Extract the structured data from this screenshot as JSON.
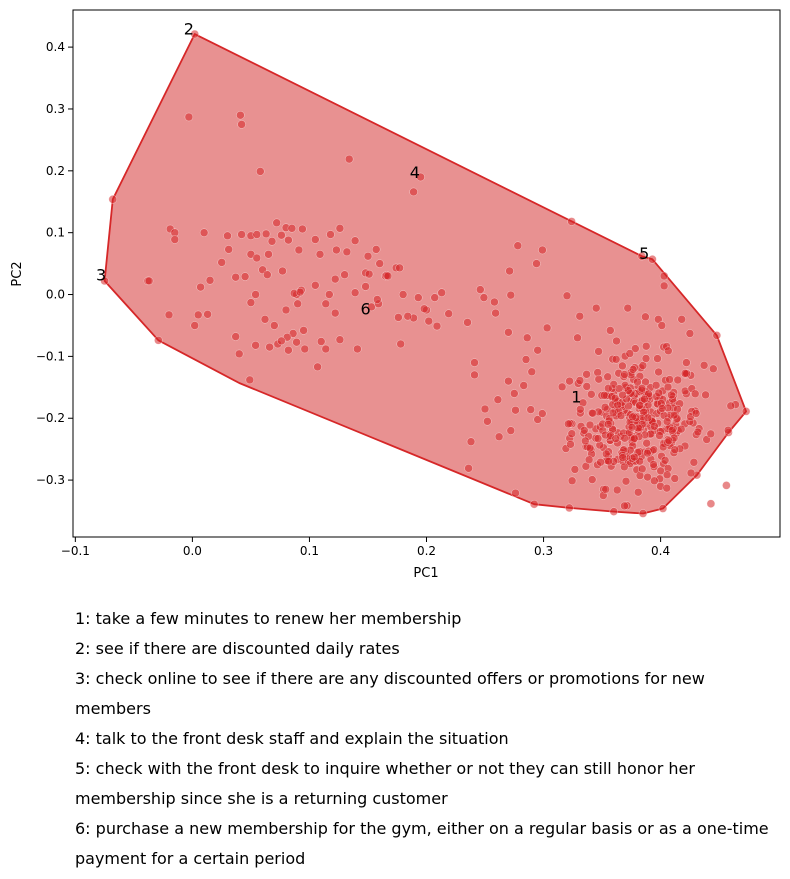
{
  "chart_data": {
    "type": "scatter",
    "title": "",
    "xlabel": "PC1",
    "ylabel": "PC2",
    "xlim": [
      -0.102,
      0.502
    ],
    "ylim": [
      -0.392,
      0.46
    ],
    "xticks": [
      -0.1,
      0.0,
      0.1,
      0.2,
      0.3,
      0.4
    ],
    "xtick_labels": [
      "−0.1",
      "0.0",
      "0.1",
      "0.2",
      "0.3",
      "0.4"
    ],
    "yticks": [
      -0.3,
      -0.2,
      -0.1,
      0.0,
      0.1,
      0.2,
      0.3,
      0.4
    ],
    "ytick_labels": [
      "−0.3",
      "−0.2",
      "−0.1",
      "0.0",
      "0.1",
      "0.2",
      "0.3",
      "0.4"
    ],
    "grid": false,
    "colors": {
      "hull_fill": "#e89191",
      "hull_edge": "#d62728",
      "point": "#d62728"
    },
    "hull": [
      [
        0.002,
        0.421
      ],
      [
        0.384,
        0.062
      ],
      [
        0.393,
        0.057
      ],
      [
        0.448,
        -0.066
      ],
      [
        0.473,
        -0.189
      ],
      [
        0.458,
        -0.223
      ],
      [
        0.431,
        -0.292
      ],
      [
        0.402,
        -0.346
      ],
      [
        0.385,
        -0.354
      ],
      [
        0.36,
        -0.351
      ],
      [
        0.322,
        -0.345
      ],
      [
        0.292,
        -0.339
      ],
      [
        0.04,
        -0.143
      ],
      [
        -0.029,
        -0.074
      ],
      [
        -0.075,
        0.022
      ],
      [
        -0.068,
        0.154
      ]
    ],
    "annotations": [
      {
        "text": "1",
        "x": 0.328,
        "y": -0.167
      },
      {
        "text": "2",
        "x": -0.003,
        "y": 0.428
      },
      {
        "text": "3",
        "x": -0.078,
        "y": 0.03
      },
      {
        "text": "4",
        "x": 0.19,
        "y": 0.196
      },
      {
        "text": "5",
        "x": 0.386,
        "y": 0.065
      },
      {
        "text": "6",
        "x": 0.148,
        "y": -0.025
      }
    ],
    "points": [
      [
        0.002,
        0.421
      ],
      [
        -0.003,
        0.287
      ],
      [
        0.041,
        0.29
      ],
      [
        0.042,
        0.275
      ],
      [
        0.134,
        0.219
      ],
      [
        0.058,
        0.199
      ],
      [
        0.195,
        0.19
      ],
      [
        0.189,
        0.166
      ],
      [
        -0.068,
        0.154
      ],
      [
        0.324,
        0.118
      ],
      [
        0.278,
        0.079
      ],
      [
        0.299,
        0.072
      ],
      [
        0.294,
        0.05
      ],
      [
        0.271,
        0.038
      ],
      [
        -0.038,
        0.022
      ],
      [
        -0.075,
        0.022
      ],
      [
        -0.019,
        0.106
      ],
      [
        -0.015,
        0.1
      ],
      [
        -0.015,
        0.089
      ],
      [
        0.01,
        0.1
      ],
      [
        0.03,
        0.095
      ],
      [
        0.042,
        0.097
      ],
      [
        0.05,
        0.095
      ],
      [
        0.055,
        0.097
      ],
      [
        0.063,
        0.098
      ],
      [
        0.072,
        0.116
      ],
      [
        0.08,
        0.108
      ],
      [
        0.085,
        0.107
      ],
      [
        0.094,
        0.106
      ],
      [
        0.076,
        0.096
      ],
      [
        0.082,
        0.088
      ],
      [
        0.105,
        0.089
      ],
      [
        0.118,
        0.097
      ],
      [
        0.126,
        0.107
      ],
      [
        0.139,
        0.087
      ],
      [
        0.123,
        0.072
      ],
      [
        0.132,
        0.069
      ],
      [
        0.15,
        0.062
      ],
      [
        0.157,
        0.073
      ],
      [
        0.16,
        0.05
      ],
      [
        0.174,
        0.043
      ],
      [
        0.177,
        0.043
      ],
      [
        0.165,
        0.03
      ],
      [
        0.166,
        0.031
      ],
      [
        0.068,
        0.086
      ],
      [
        0.031,
        0.073
      ],
      [
        0.05,
        0.065
      ],
      [
        0.055,
        0.059
      ],
      [
        0.065,
        0.065
      ],
      [
        0.091,
        0.072
      ],
      [
        0.109,
        0.065
      ],
      [
        0.06,
        0.04
      ],
      [
        0.064,
        0.032
      ],
      [
        0.077,
        0.038
      ],
      [
        0.045,
        0.029
      ],
      [
        0.037,
        0.028
      ],
      [
        0.025,
        0.052
      ],
      [
        0.015,
        0.023
      ],
      [
        0.007,
        0.012
      ],
      [
        -0.037,
        0.022
      ],
      [
        -0.02,
        -0.033
      ],
      [
        0.005,
        -0.033
      ],
      [
        0.013,
        -0.032
      ],
      [
        0.002,
        -0.05
      ],
      [
        0.054,
        0.0
      ],
      [
        0.05,
        -0.013
      ],
      [
        0.062,
        -0.04
      ],
      [
        0.07,
        -0.05
      ],
      [
        0.08,
        -0.025
      ],
      [
        0.09,
        -0.015
      ],
      [
        0.089,
        0.0
      ],
      [
        0.087,
        0.002
      ],
      [
        0.093,
        0.007
      ],
      [
        0.092,
        0.004
      ],
      [
        0.105,
        0.015
      ],
      [
        0.122,
        0.025
      ],
      [
        0.13,
        0.032
      ],
      [
        0.148,
        0.035
      ],
      [
        0.151,
        0.033
      ],
      [
        0.167,
        0.03
      ],
      [
        0.117,
        0.0
      ],
      [
        0.114,
        -0.015
      ],
      [
        0.122,
        -0.03
      ],
      [
        0.153,
        -0.02
      ],
      [
        0.176,
        -0.037
      ],
      [
        0.189,
        -0.038
      ],
      [
        0.184,
        -0.035
      ],
      [
        0.202,
        -0.043
      ],
      [
        0.209,
        -0.051
      ],
      [
        0.219,
        -0.031
      ],
      [
        0.2,
        -0.025
      ],
      [
        0.207,
        -0.005
      ],
      [
        0.235,
        -0.045
      ],
      [
        0.037,
        -0.068
      ],
      [
        0.04,
        -0.096
      ],
      [
        0.054,
        -0.082
      ],
      [
        0.073,
        -0.08
      ],
      [
        0.082,
        -0.09
      ],
      [
        0.089,
        -0.077
      ],
      [
        0.096,
        -0.088
      ],
      [
        0.11,
        -0.076
      ],
      [
        0.114,
        -0.088
      ],
      [
        0.107,
        -0.117
      ],
      [
        0.126,
        -0.073
      ],
      [
        0.141,
        -0.088
      ],
      [
        0.178,
        -0.08
      ],
      [
        0.139,
        0.003
      ],
      [
        0.159,
        -0.015
      ],
      [
        0.095,
        -0.058
      ],
      [
        0.086,
        -0.063
      ],
      [
        0.081,
        -0.069
      ],
      [
        0.076,
        -0.075
      ],
      [
        0.066,
        -0.085
      ],
      [
        0.148,
        0.013
      ],
      [
        0.158,
        -0.008
      ],
      [
        0.18,
        0.0
      ],
      [
        0.193,
        -0.005
      ],
      [
        0.198,
        -0.023
      ],
      [
        0.213,
        0.003
      ],
      [
        0.246,
        0.008
      ],
      [
        0.249,
        -0.005
      ],
      [
        0.258,
        -0.012
      ],
      [
        0.272,
        -0.001
      ],
      [
        0.259,
        -0.03
      ],
      [
        0.27,
        -0.061
      ],
      [
        0.286,
        -0.07
      ],
      [
        0.303,
        -0.054
      ],
      [
        0.32,
        -0.002
      ],
      [
        0.331,
        -0.035
      ],
      [
        0.329,
        -0.07
      ],
      [
        0.345,
        -0.022
      ],
      [
        0.357,
        -0.058
      ],
      [
        0.372,
        -0.022
      ],
      [
        0.387,
        -0.036
      ],
      [
        0.398,
        -0.04
      ],
      [
        0.401,
        -0.05
      ],
      [
        0.393,
        0.057
      ],
      [
        0.403,
        0.03
      ],
      [
        0.403,
        0.014
      ],
      [
        0.384,
        0.062
      ],
      [
        0.418,
        -0.04
      ],
      [
        0.425,
        -0.063
      ],
      [
        0.448,
        -0.066
      ],
      [
        0.422,
        -0.11
      ],
      [
        0.445,
        -0.12
      ],
      [
        0.464,
        -0.178
      ],
      [
        0.46,
        -0.18
      ],
      [
        0.473,
        -0.189
      ],
      [
        0.458,
        -0.223
      ],
      [
        0.431,
        -0.292
      ],
      [
        0.402,
        -0.346
      ],
      [
        0.385,
        -0.354
      ],
      [
        0.36,
        -0.351
      ],
      [
        0.322,
        -0.345
      ],
      [
        0.292,
        -0.339
      ],
      [
        0.276,
        -0.321
      ],
      [
        0.236,
        -0.281
      ],
      [
        0.238,
        -0.238
      ],
      [
        0.049,
        -0.138
      ],
      [
        -0.029,
        -0.074
      ],
      [
        0.241,
        -0.11
      ],
      [
        0.241,
        -0.13
      ],
      [
        0.25,
        -0.185
      ],
      [
        0.252,
        -0.205
      ],
      [
        0.262,
        -0.23
      ],
      [
        0.272,
        -0.22
      ],
      [
        0.261,
        -0.17
      ],
      [
        0.27,
        -0.14
      ],
      [
        0.275,
        -0.16
      ],
      [
        0.283,
        -0.147
      ],
      [
        0.29,
        -0.125
      ],
      [
        0.285,
        -0.105
      ],
      [
        0.295,
        -0.09
      ],
      [
        0.289,
        -0.186
      ],
      [
        0.295,
        -0.202
      ],
      [
        0.276,
        -0.187
      ]
    ],
    "cluster": {
      "count": 380,
      "center": [
        0.38,
        -0.205
      ],
      "spread": [
        0.028,
        0.052
      ],
      "xmin": 0.285,
      "xmax": 0.47,
      "ymin": -0.345,
      "ymax": -0.062
    }
  },
  "legend_entries": [
    "1: take a few minutes to renew her membership",
    "2: see if there are discounted daily rates",
    "3: check online to see if there are any discounted offers or promotions for new members",
    "4: talk to the front desk staff and explain the situation",
    "5: check with the front desk to inquire whether or not they can still honor her membership since she is a returning customer",
    "6: purchase a new membership for the gym, either on a regular basis or as a one-time payment for a certain period"
  ]
}
